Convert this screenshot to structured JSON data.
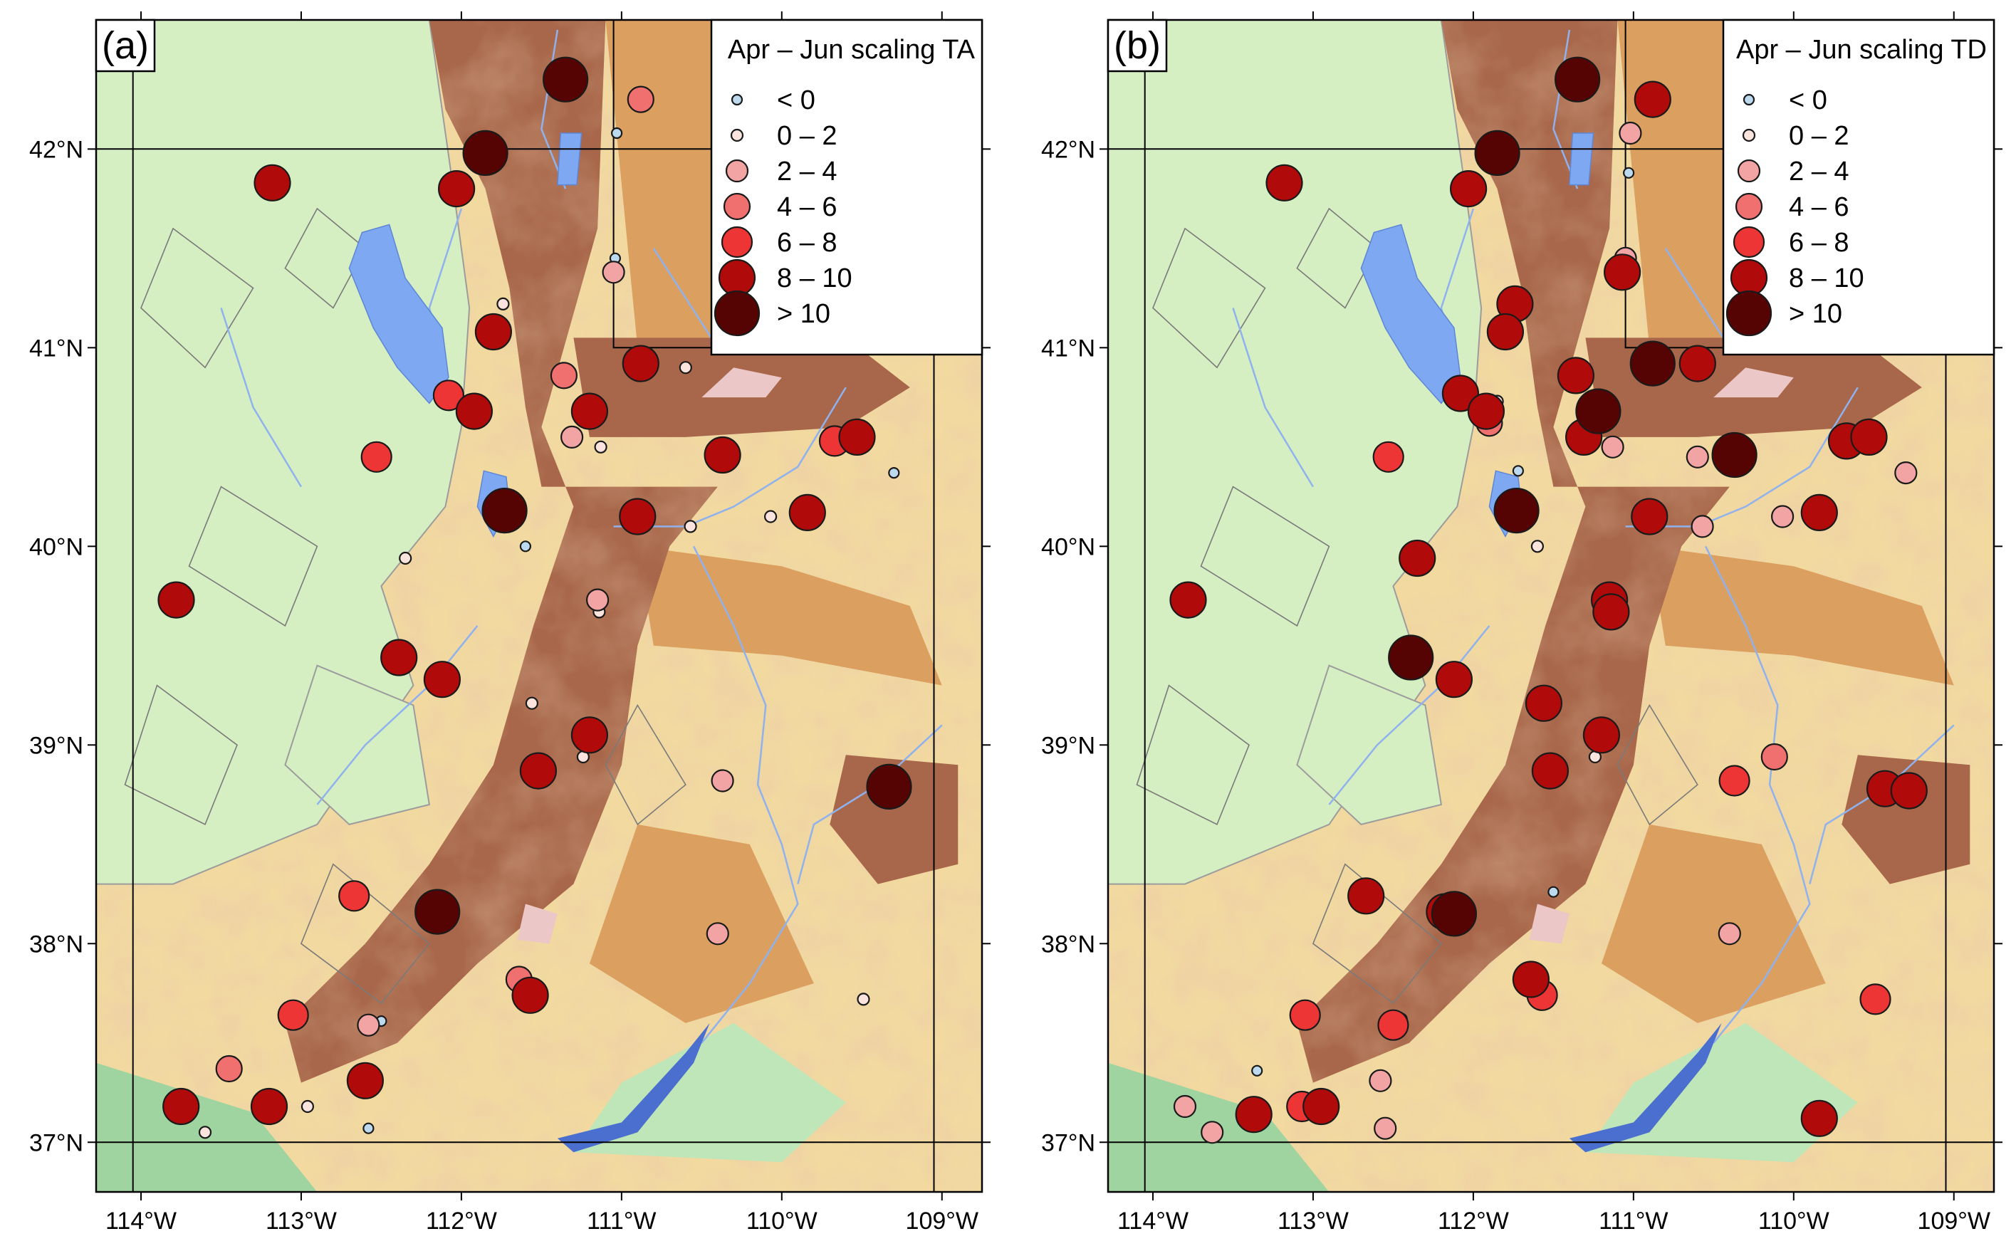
{
  "figure": {
    "panels": [
      {
        "tag": "(a)",
        "legend_title": "Apr – Jun scaling TA",
        "stations": [
          {
            "lon": -111.35,
            "lat": 42.35,
            "cls": 6
          },
          {
            "lon": -110.88,
            "lat": 42.25,
            "cls": 3
          },
          {
            "lon": -111.03,
            "lat": 42.08,
            "cls": 0
          },
          {
            "lon": -111.85,
            "lat": 41.98,
            "cls": 6
          },
          {
            "lon": -113.18,
            "lat": 41.83,
            "cls": 5
          },
          {
            "lon": -112.03,
            "lat": 41.8,
            "cls": 5
          },
          {
            "lon": -111.04,
            "lat": 41.45,
            "cls": 0
          },
          {
            "lon": -111.05,
            "lat": 41.38,
            "cls": 2
          },
          {
            "lon": -111.74,
            "lat": 41.22,
            "cls": 1
          },
          {
            "lon": -111.8,
            "lat": 41.08,
            "cls": 5
          },
          {
            "lon": -110.88,
            "lat": 40.92,
            "cls": 5
          },
          {
            "lon": -110.6,
            "lat": 40.9,
            "cls": 1
          },
          {
            "lon": -111.36,
            "lat": 40.86,
            "cls": 3
          },
          {
            "lon": -111.34,
            "lat": 40.88,
            "cls": 0
          },
          {
            "lon": -112.08,
            "lat": 40.76,
            "cls": 4
          },
          {
            "lon": -111.92,
            "lat": 40.68,
            "cls": 5
          },
          {
            "lon": -111.87,
            "lat": 40.73,
            "cls": 0
          },
          {
            "lon": -111.2,
            "lat": 40.68,
            "cls": 5
          },
          {
            "lon": -111.31,
            "lat": 40.55,
            "cls": 2
          },
          {
            "lon": -111.13,
            "lat": 40.5,
            "cls": 1
          },
          {
            "lon": -109.67,
            "lat": 40.53,
            "cls": 4
          },
          {
            "lon": -109.53,
            "lat": 40.55,
            "cls": 5
          },
          {
            "lon": -110.37,
            "lat": 40.46,
            "cls": 5
          },
          {
            "lon": -112.53,
            "lat": 40.45,
            "cls": 4
          },
          {
            "lon": -109.3,
            "lat": 40.37,
            "cls": 0
          },
          {
            "lon": -111.73,
            "lat": 40.18,
            "cls": 6
          },
          {
            "lon": -110.9,
            "lat": 40.15,
            "cls": 5
          },
          {
            "lon": -110.57,
            "lat": 40.1,
            "cls": 1
          },
          {
            "lon": -110.07,
            "lat": 40.15,
            "cls": 1
          },
          {
            "lon": -109.84,
            "lat": 40.17,
            "cls": 5
          },
          {
            "lon": -111.6,
            "lat": 40.0,
            "cls": 0
          },
          {
            "lon": -112.35,
            "lat": 39.94,
            "cls": 1
          },
          {
            "lon": -111.15,
            "lat": 39.73,
            "cls": 2
          },
          {
            "lon": -111.14,
            "lat": 39.67,
            "cls": 1
          },
          {
            "lon": -113.78,
            "lat": 39.73,
            "cls": 5
          },
          {
            "lon": -112.39,
            "lat": 39.44,
            "cls": 5
          },
          {
            "lon": -112.12,
            "lat": 39.33,
            "cls": 5
          },
          {
            "lon": -111.56,
            "lat": 39.21,
            "cls": 1
          },
          {
            "lon": -111.2,
            "lat": 39.05,
            "cls": 5
          },
          {
            "lon": -111.24,
            "lat": 38.94,
            "cls": 1
          },
          {
            "lon": -111.52,
            "lat": 38.87,
            "cls": 5
          },
          {
            "lon": -110.37,
            "lat": 38.82,
            "cls": 2
          },
          {
            "lon": -109.33,
            "lat": 38.79,
            "cls": 6
          },
          {
            "lon": -109.23,
            "lat": 38.77,
            "cls": 1
          },
          {
            "lon": -112.67,
            "lat": 38.24,
            "cls": 4
          },
          {
            "lon": -112.15,
            "lat": 38.16,
            "cls": 6
          },
          {
            "lon": -110.4,
            "lat": 38.05,
            "cls": 2
          },
          {
            "lon": -111.64,
            "lat": 37.82,
            "cls": 3
          },
          {
            "lon": -111.57,
            "lat": 37.74,
            "cls": 5
          },
          {
            "lon": -109.49,
            "lat": 37.72,
            "cls": 1
          },
          {
            "lon": -113.05,
            "lat": 37.64,
            "cls": 4
          },
          {
            "lon": -112.58,
            "lat": 37.59,
            "cls": 2
          },
          {
            "lon": -112.5,
            "lat": 37.61,
            "cls": 0
          },
          {
            "lon": -113.45,
            "lat": 37.37,
            "cls": 3
          },
          {
            "lon": -112.6,
            "lat": 37.31,
            "cls": 5
          },
          {
            "lon": -112.96,
            "lat": 37.18,
            "cls": 1
          },
          {
            "lon": -113.75,
            "lat": 37.18,
            "cls": 5
          },
          {
            "lon": -113.2,
            "lat": 37.18,
            "cls": 5
          },
          {
            "lon": -113.6,
            "lat": 37.05,
            "cls": 1
          },
          {
            "lon": -112.58,
            "lat": 37.07,
            "cls": 0
          }
        ]
      },
      {
        "tag": "(b)",
        "legend_title": "Apr – Jun scaling TD",
        "stations": [
          {
            "lon": -111.35,
            "lat": 42.35,
            "cls": 6
          },
          {
            "lon": -110.88,
            "lat": 42.25,
            "cls": 5
          },
          {
            "lon": -111.02,
            "lat": 42.08,
            "cls": 2
          },
          {
            "lon": -111.03,
            "lat": 41.88,
            "cls": 0
          },
          {
            "lon": -111.85,
            "lat": 41.98,
            "cls": 6
          },
          {
            "lon": -113.18,
            "lat": 41.83,
            "cls": 5
          },
          {
            "lon": -112.03,
            "lat": 41.8,
            "cls": 5
          },
          {
            "lon": -111.05,
            "lat": 41.45,
            "cls": 2
          },
          {
            "lon": -111.07,
            "lat": 41.38,
            "cls": 5
          },
          {
            "lon": -111.74,
            "lat": 41.22,
            "cls": 5
          },
          {
            "lon": -111.8,
            "lat": 41.08,
            "cls": 5
          },
          {
            "lon": -110.88,
            "lat": 40.92,
            "cls": 6
          },
          {
            "lon": -110.6,
            "lat": 40.92,
            "cls": 5
          },
          {
            "lon": -111.36,
            "lat": 40.86,
            "cls": 5
          },
          {
            "lon": -111.34,
            "lat": 40.88,
            "cls": 1
          },
          {
            "lon": -112.08,
            "lat": 40.77,
            "cls": 5
          },
          {
            "lon": -111.92,
            "lat": 40.68,
            "cls": 5
          },
          {
            "lon": -111.9,
            "lat": 40.62,
            "cls": 3
          },
          {
            "lon": -111.85,
            "lat": 40.73,
            "cls": 1
          },
          {
            "lon": -111.22,
            "lat": 40.68,
            "cls": 6
          },
          {
            "lon": -111.31,
            "lat": 40.55,
            "cls": 5
          },
          {
            "lon": -111.13,
            "lat": 40.5,
            "cls": 2
          },
          {
            "lon": -109.67,
            "lat": 40.53,
            "cls": 5
          },
          {
            "lon": -109.53,
            "lat": 40.55,
            "cls": 5
          },
          {
            "lon": -110.6,
            "lat": 40.45,
            "cls": 2
          },
          {
            "lon": -110.37,
            "lat": 40.46,
            "cls": 6
          },
          {
            "lon": -112.53,
            "lat": 40.45,
            "cls": 4
          },
          {
            "lon": -109.3,
            "lat": 40.37,
            "cls": 2
          },
          {
            "lon": -111.72,
            "lat": 40.38,
            "cls": 0
          },
          {
            "lon": -111.73,
            "lat": 40.18,
            "cls": 6
          },
          {
            "lon": -110.9,
            "lat": 40.15,
            "cls": 5
          },
          {
            "lon": -110.57,
            "lat": 40.1,
            "cls": 2
          },
          {
            "lon": -110.07,
            "lat": 40.15,
            "cls": 2
          },
          {
            "lon": -109.84,
            "lat": 40.17,
            "cls": 5
          },
          {
            "lon": -111.6,
            "lat": 40.0,
            "cls": 1
          },
          {
            "lon": -112.35,
            "lat": 39.94,
            "cls": 5
          },
          {
            "lon": -111.15,
            "lat": 39.73,
            "cls": 5
          },
          {
            "lon": -111.14,
            "lat": 39.67,
            "cls": 5
          },
          {
            "lon": -113.78,
            "lat": 39.73,
            "cls": 5
          },
          {
            "lon": -112.39,
            "lat": 39.44,
            "cls": 6
          },
          {
            "lon": -112.12,
            "lat": 39.33,
            "cls": 5
          },
          {
            "lon": -111.56,
            "lat": 39.21,
            "cls": 5
          },
          {
            "lon": -111.2,
            "lat": 39.05,
            "cls": 5
          },
          {
            "lon": -111.24,
            "lat": 38.94,
            "cls": 1
          },
          {
            "lon": -111.52,
            "lat": 38.87,
            "cls": 5
          },
          {
            "lon": -110.37,
            "lat": 38.82,
            "cls": 4
          },
          {
            "lon": -110.12,
            "lat": 38.94,
            "cls": 3
          },
          {
            "lon": -109.43,
            "lat": 38.78,
            "cls": 5
          },
          {
            "lon": -109.28,
            "lat": 38.77,
            "cls": 5
          },
          {
            "lon": -111.5,
            "lat": 38.26,
            "cls": 0
          },
          {
            "lon": -112.67,
            "lat": 38.24,
            "cls": 5
          },
          {
            "lon": -112.18,
            "lat": 38.16,
            "cls": 5
          },
          {
            "lon": -112.12,
            "lat": 38.15,
            "cls": 6
          },
          {
            "lon": -110.4,
            "lat": 38.05,
            "cls": 2
          },
          {
            "lon": -111.64,
            "lat": 37.82,
            "cls": 5
          },
          {
            "lon": -111.57,
            "lat": 37.74,
            "cls": 4
          },
          {
            "lon": -109.49,
            "lat": 37.72,
            "cls": 4
          },
          {
            "lon": -113.05,
            "lat": 37.64,
            "cls": 4
          },
          {
            "lon": -112.5,
            "lat": 37.59,
            "cls": 4
          },
          {
            "lon": -112.45,
            "lat": 37.62,
            "cls": 1
          },
          {
            "lon": -113.35,
            "lat": 37.36,
            "cls": 0
          },
          {
            "lon": -112.58,
            "lat": 37.31,
            "cls": 2
          },
          {
            "lon": -113.8,
            "lat": 37.18,
            "cls": 2
          },
          {
            "lon": -113.07,
            "lat": 37.18,
            "cls": 4
          },
          {
            "lon": -112.95,
            "lat": 37.18,
            "cls": 5
          },
          {
            "lon": -113.37,
            "lat": 37.14,
            "cls": 5
          },
          {
            "lon": -113.63,
            "lat": 37.05,
            "cls": 2
          },
          {
            "lon": -112.55,
            "lat": 37.07,
            "cls": 2
          },
          {
            "lon": -109.84,
            "lat": 37.12,
            "cls": 5
          }
        ]
      }
    ],
    "legend": [
      {
        "label": "< 0",
        "color": "#bcd9ee"
      },
      {
        "label": "0 – 2",
        "color": "#fbe3de"
      },
      {
        "label": "2 – 4",
        "color": "#f2a4a4"
      },
      {
        "label": "4 – 6",
        "color": "#f07070"
      },
      {
        "label": "6 – 8",
        "color": "#ee3535"
      },
      {
        "label": "8 – 10",
        "color": "#b00a0a"
      },
      {
        "label": "> 10",
        "color": "#560303"
      }
    ],
    "x_ticks": [
      {
        "lon": -114,
        "label": "114°W"
      },
      {
        "lon": -113,
        "label": "113°W"
      },
      {
        "lon": -112,
        "label": "112°W"
      },
      {
        "lon": -111,
        "label": "111°W"
      },
      {
        "lon": -110,
        "label": "110°W"
      },
      {
        "lon": -109,
        "label": "109°W"
      }
    ],
    "y_ticks": [
      {
        "lat": 42,
        "label": "42°N"
      },
      {
        "lat": 41,
        "label": "41°N"
      },
      {
        "lat": 40,
        "label": "40°N"
      },
      {
        "lat": 39,
        "label": "39°N"
      },
      {
        "lat": 38,
        "label": "38°N"
      },
      {
        "lat": 37,
        "label": "37°N"
      }
    ],
    "map_extent": {
      "lon_min": -114.28,
      "lon_max": -108.75,
      "lat_min": 36.75,
      "lat_max": 42.65
    },
    "colors": {
      "water": "#7fa8f2",
      "lowland": "#d6efc2",
      "basin_green": "#9fd4a0",
      "foothill": "#f1d9a0",
      "upland": "#dba060",
      "mountain": "#a8674a",
      "peak": "#ecc7c7",
      "state_line": "#000000"
    }
  }
}
